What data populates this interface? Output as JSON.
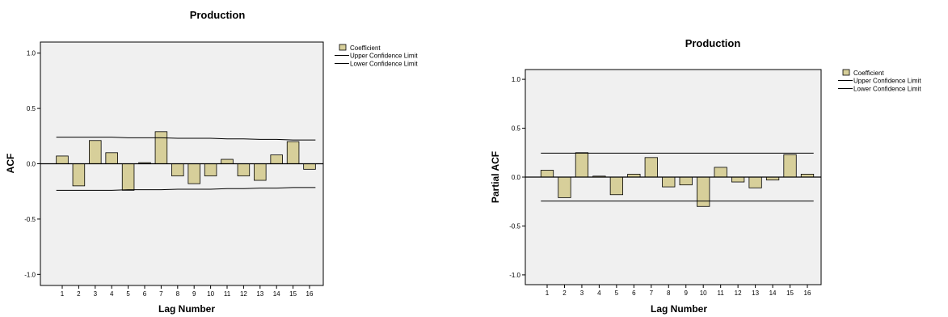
{
  "colors": {
    "plot_background": "#f0f0f0",
    "bar_fill": "#d7cf9a",
    "bar_stroke": "#000000",
    "line": "#000000"
  },
  "chart_data": [
    {
      "type": "bar",
      "title": "Production",
      "xlabel": "Lag Number",
      "ylabel": "ACF",
      "ylim": [
        -1.1,
        1.1
      ],
      "yticks": [
        "1.0",
        "0.5",
        "0.0",
        "-0.5",
        "-1.0"
      ],
      "categories": [
        "1",
        "2",
        "3",
        "4",
        "5",
        "6",
        "7",
        "8",
        "9",
        "10",
        "11",
        "12",
        "13",
        "14",
        "15",
        "16"
      ],
      "series": [
        {
          "name": "Coefficient",
          "values": [
            0.07,
            -0.2,
            0.21,
            0.1,
            -0.24,
            0.01,
            0.29,
            -0.11,
            -0.18,
            -0.11,
            0.04,
            -0.11,
            -0.15,
            0.08,
            0.2,
            -0.05
          ]
        },
        {
          "name": "Upper Confidence Limit",
          "values": [
            0.24,
            0.24,
            0.24,
            0.24,
            0.235,
            0.235,
            0.235,
            0.23,
            0.23,
            0.23,
            0.225,
            0.225,
            0.22,
            0.22,
            0.215,
            0.215
          ]
        },
        {
          "name": "Lower Confidence Limit",
          "values": [
            -0.24,
            -0.24,
            -0.24,
            -0.24,
            -0.235,
            -0.235,
            -0.235,
            -0.23,
            -0.23,
            -0.23,
            -0.225,
            -0.225,
            -0.22,
            -0.22,
            -0.215,
            -0.215
          ]
        }
      ],
      "grid": false,
      "legend": "right"
    },
    {
      "type": "bar",
      "title": "Production",
      "xlabel": "Lag Number",
      "ylabel": "Partial ACF",
      "ylim": [
        -1.1,
        1.1
      ],
      "yticks": [
        "1.0",
        "0.5",
        "0.0",
        "-0.5",
        "-1.0"
      ],
      "categories": [
        "1",
        "2",
        "3",
        "4",
        "5",
        "6",
        "7",
        "8",
        "9",
        "10",
        "11",
        "12",
        "13",
        "14",
        "15",
        "16"
      ],
      "series": [
        {
          "name": "Coefficient",
          "values": [
            0.07,
            -0.21,
            0.25,
            0.01,
            -0.18,
            0.03,
            0.2,
            -0.1,
            -0.08,
            -0.3,
            0.1,
            -0.05,
            -0.11,
            -0.03,
            0.23,
            0.03
          ]
        },
        {
          "name": "Upper Confidence Limit",
          "values": [
            0.245,
            0.245,
            0.245,
            0.245,
            0.245,
            0.245,
            0.245,
            0.245,
            0.245,
            0.245,
            0.245,
            0.245,
            0.245,
            0.245,
            0.245,
            0.245
          ]
        },
        {
          "name": "Lower Confidence Limit",
          "values": [
            -0.245,
            -0.245,
            -0.245,
            -0.245,
            -0.245,
            -0.245,
            -0.245,
            -0.245,
            -0.245,
            -0.245,
            -0.245,
            -0.245,
            -0.245,
            -0.245,
            -0.245,
            -0.245
          ]
        }
      ],
      "grid": false,
      "legend": "right"
    }
  ]
}
